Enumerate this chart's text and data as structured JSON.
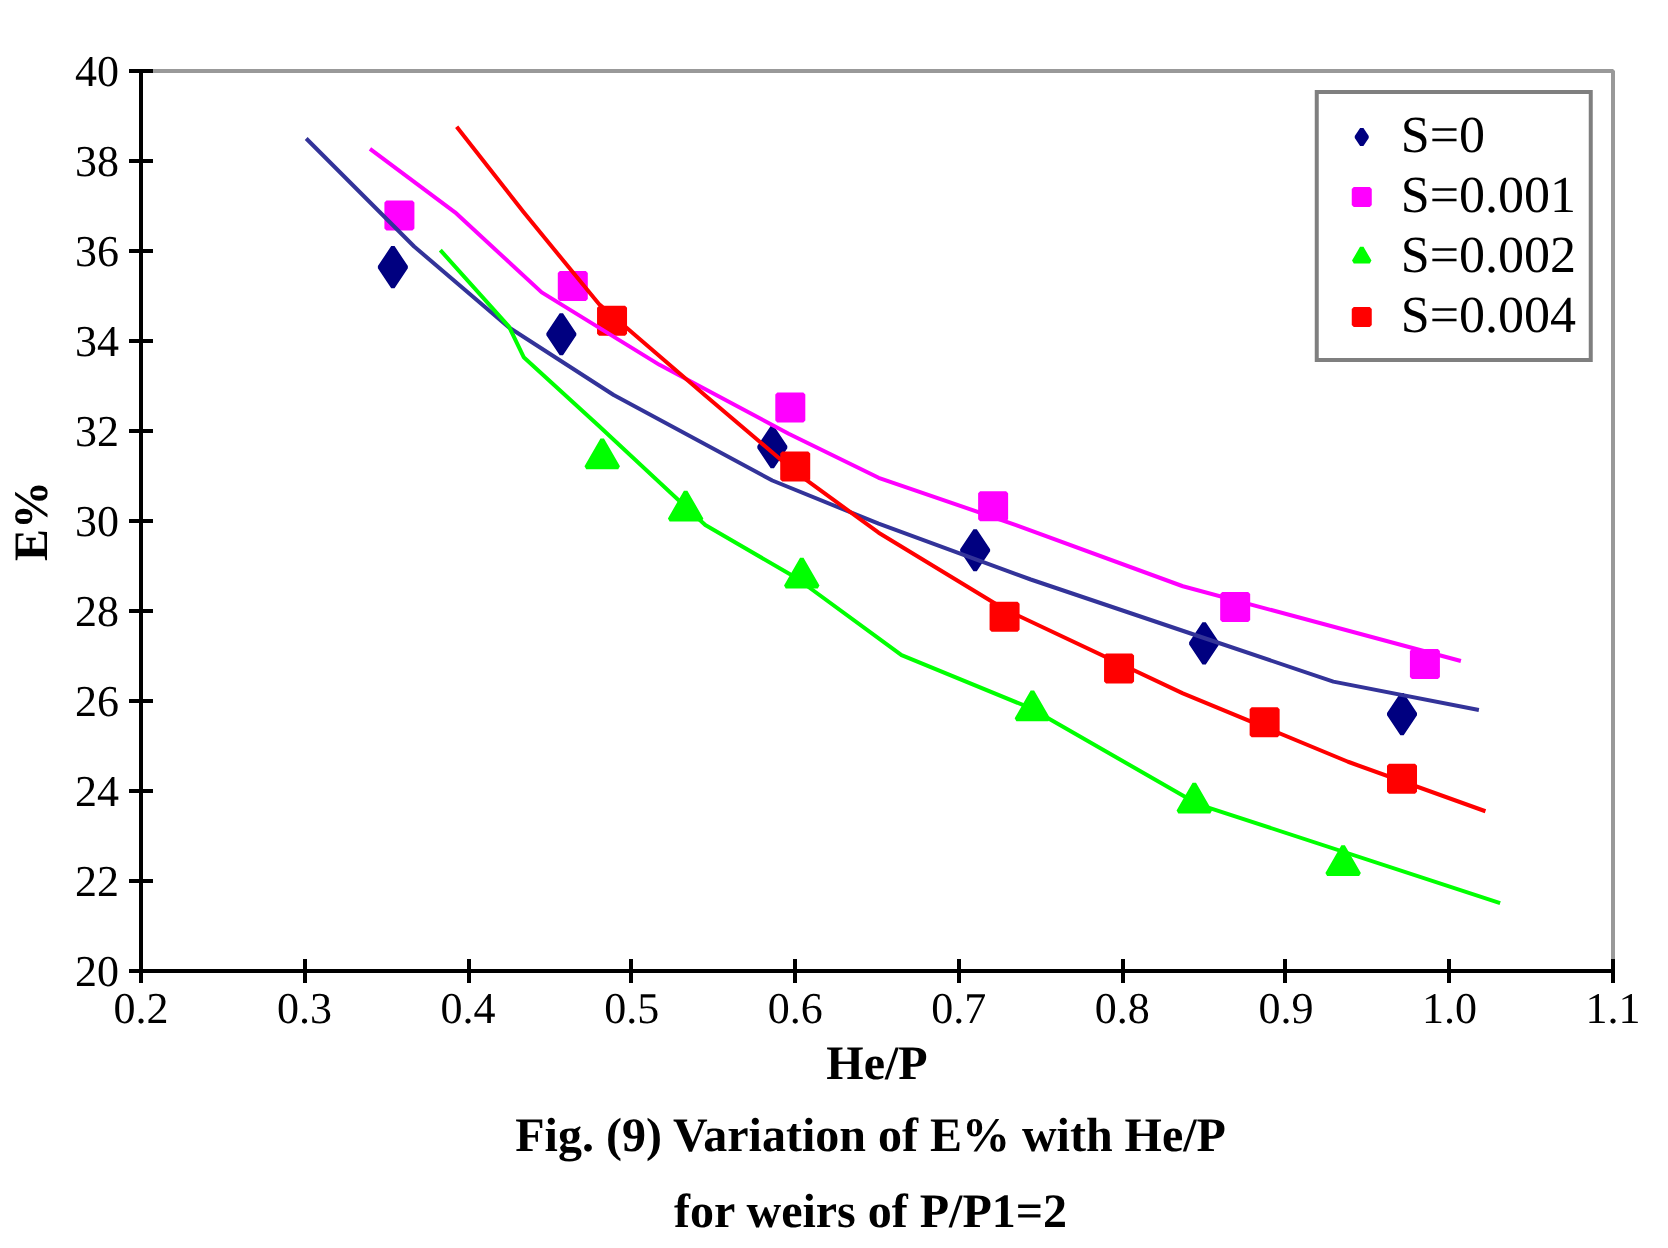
{
  "chart_data": {
    "type": "scatter",
    "title": "Fig. (9) Variation of E%  with He/P",
    "subtitle": "for weirs of  P/P1=2",
    "xlabel": "He/P",
    "ylabel": "E%",
    "xlim": [
      0.2,
      1.1
    ],
    "ylim": [
      20,
      40
    ],
    "xticks": [
      0.2,
      0.3,
      0.4,
      0.5,
      0.6,
      0.7,
      0.8,
      0.9,
      {
        "value": 1.0,
        "label": "1.0"
      },
      1.1
    ],
    "yticks": [
      20,
      22,
      24,
      26,
      28,
      30,
      32,
      34,
      36,
      38,
      40
    ],
    "grid": false,
    "legend": "top right",
    "series": [
      {
        "name": "S=0",
        "type": "scatter",
        "marker": "diamond",
        "color": "#000080",
        "x": [
          0.354,
          0.457,
          0.586,
          0.71,
          0.85,
          0.971
        ],
        "values": [
          35.64,
          34.15,
          31.64,
          29.35,
          27.28,
          25.71
        ]
      },
      {
        "name": "S=0.001",
        "type": "scatter",
        "marker": "square",
        "color": "#ff00ff",
        "x": [
          0.358,
          0.464,
          0.597,
          0.721,
          0.869,
          0.985
        ],
        "values": [
          36.79,
          35.22,
          32.52,
          30.33,
          28.09,
          26.82
        ]
      },
      {
        "name": "S=0.002",
        "type": "scatter",
        "marker": "triangle",
        "color": "#00ff00",
        "x": [
          0.482,
          0.533,
          0.604,
          0.745,
          0.844,
          0.935
        ],
        "values": [
          31.4,
          30.24,
          28.75,
          25.8,
          23.75,
          22.36
        ]
      },
      {
        "name": "S=0.004",
        "marker": "square",
        "color": "#ff0000",
        "x": [
          0.488,
          0.6,
          0.728,
          0.798,
          0.887,
          0.971
        ],
        "values": [
          34.45,
          31.21,
          27.87,
          26.72,
          25.53,
          24.27
        ]
      },
      {
        "type": "line",
        "marker": "none",
        "color": "#333399",
        "x": [
          0.301,
          0.367,
          0.425,
          0.489,
          0.586,
          0.651,
          0.744,
          0.85,
          0.929,
          1.018
        ],
        "values": [
          38.5,
          36.1,
          34.3,
          32.8,
          30.9,
          29.94,
          28.7,
          27.4,
          26.43,
          25.8
        ]
      },
      {
        "type": "line",
        "marker": "none",
        "color": "#ff00ff",
        "x": [
          0.34,
          0.392,
          0.445,
          0.517,
          0.596,
          0.651,
          0.735,
          0.837,
          1.007
        ],
        "values": [
          38.27,
          36.86,
          35.08,
          33.47,
          31.94,
          30.96,
          29.91,
          28.55,
          26.89
        ]
      },
      {
        "type": "line",
        "marker": "none",
        "color": "#00ff00",
        "x": [
          0.383,
          0.425,
          0.434,
          0.48,
          0.545,
          0.6,
          0.665,
          0.744,
          0.846,
          1.031
        ],
        "values": [
          36.02,
          34.32,
          33.64,
          32.11,
          29.91,
          28.75,
          27.02,
          25.84,
          23.71,
          21.51
        ]
      },
      {
        "type": "line",
        "marker": "none",
        "color": "#ff0000",
        "x": [
          0.393,
          0.434,
          0.48,
          0.545,
          0.6,
          0.651,
          0.728,
          0.837,
          0.938,
          1.022
        ],
        "values": [
          38.76,
          36.86,
          34.82,
          32.79,
          31.09,
          29.74,
          28.04,
          26.17,
          24.65,
          23.55
        ]
      }
    ]
  }
}
